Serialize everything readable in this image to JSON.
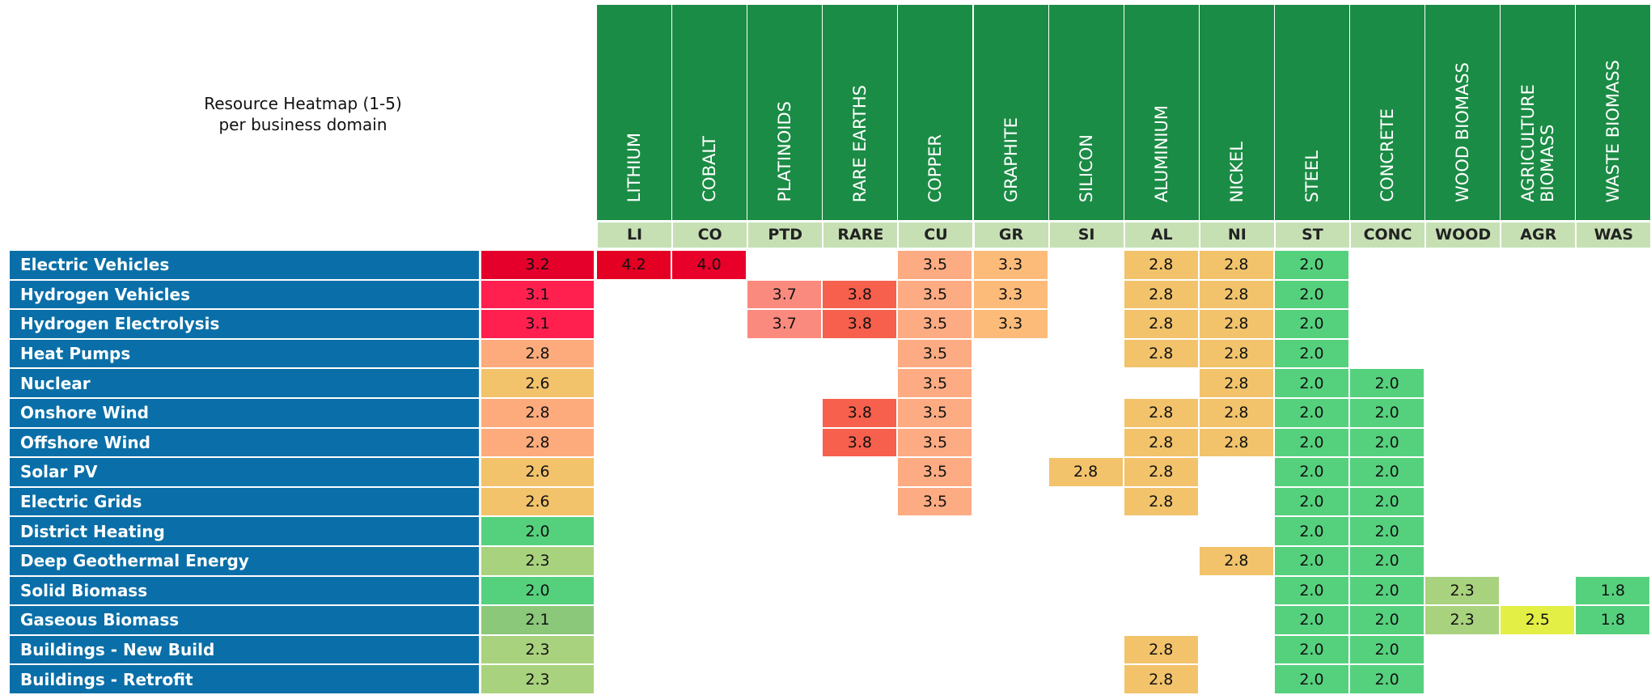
{
  "title": "Resource Heatmap (1-5)\nper business domain",
  "columns": [
    {
      "name": "LITHIUM",
      "abbr": "LI"
    },
    {
      "name": "COBALT",
      "abbr": "CO"
    },
    {
      "name": "PLATINOIDS",
      "abbr": "PTD"
    },
    {
      "name": "RARE EARTHS",
      "abbr": "RARE"
    },
    {
      "name": "COPPER",
      "abbr": "CU"
    },
    {
      "name": "GRAPHITE",
      "abbr": "GR"
    },
    {
      "name": "SILICON",
      "abbr": "SI"
    },
    {
      "name": "ALUMINIUM",
      "abbr": "AL"
    },
    {
      "name": "NICKEL",
      "abbr": "NI"
    },
    {
      "name": "STEEL",
      "abbr": "ST"
    },
    {
      "name": "CONCRETE",
      "abbr": "CONC"
    },
    {
      "name": "WOOD BIOMASS",
      "abbr": "WOOD"
    },
    {
      "name": "AGRICULTURE BIOMASS",
      "abbr": "AGR"
    },
    {
      "name": "WASTE BIOMASS",
      "abbr": "WAS"
    }
  ],
  "rows": [
    {
      "label": "Electric Vehicles",
      "average": {
        "value": "3.2",
        "color": "#e4002b"
      },
      "cells": [
        {
          "value": "4.2",
          "color": "#e30022"
        },
        {
          "value": "4.0",
          "color": "#e8002a"
        },
        null,
        null,
        {
          "value": "3.5",
          "color": "#fdab82"
        },
        {
          "value": "3.3",
          "color": "#fdbb7a"
        },
        null,
        {
          "value": "2.8",
          "color": "#f2c36b"
        },
        {
          "value": "2.8",
          "color": "#f2c36b"
        },
        {
          "value": "2.0",
          "color": "#55d17e"
        },
        null,
        null,
        null,
        null
      ]
    },
    {
      "label": "Hydrogen Vehicles",
      "average": {
        "value": "3.1",
        "color": "#ff2050"
      },
      "cells": [
        null,
        null,
        {
          "value": "3.7",
          "color": "#fb8a7e"
        },
        {
          "value": "3.8",
          "color": "#f6604c"
        },
        {
          "value": "3.5",
          "color": "#fdab82"
        },
        {
          "value": "3.3",
          "color": "#fdbb7a"
        },
        null,
        {
          "value": "2.8",
          "color": "#f2c36b"
        },
        {
          "value": "2.8",
          "color": "#f2c36b"
        },
        {
          "value": "2.0",
          "color": "#55d17e"
        },
        null,
        null,
        null,
        null
      ]
    },
    {
      "label": "Hydrogen Electrolysis",
      "average": {
        "value": "3.1",
        "color": "#ff2050"
      },
      "cells": [
        null,
        null,
        {
          "value": "3.7",
          "color": "#fb8a7e"
        },
        {
          "value": "3.8",
          "color": "#f6604c"
        },
        {
          "value": "3.5",
          "color": "#fdab82"
        },
        {
          "value": "3.3",
          "color": "#fdbb7a"
        },
        null,
        {
          "value": "2.8",
          "color": "#f2c36b"
        },
        {
          "value": "2.8",
          "color": "#f2c36b"
        },
        {
          "value": "2.0",
          "color": "#55d17e"
        },
        null,
        null,
        null,
        null
      ]
    },
    {
      "label": "Heat Pumps",
      "average": {
        "value": "2.8",
        "color": "#fdab7c"
      },
      "cells": [
        null,
        null,
        null,
        null,
        {
          "value": "3.5",
          "color": "#fdab82"
        },
        null,
        null,
        {
          "value": "2.8",
          "color": "#f2c36b"
        },
        {
          "value": "2.8",
          "color": "#f2c36b"
        },
        {
          "value": "2.0",
          "color": "#55d17e"
        },
        null,
        null,
        null,
        null
      ]
    },
    {
      "label": "Nuclear",
      "average": {
        "value": "2.6",
        "color": "#f2c36b"
      },
      "cells": [
        null,
        null,
        null,
        null,
        {
          "value": "3.5",
          "color": "#fdab82"
        },
        null,
        null,
        null,
        {
          "value": "2.8",
          "color": "#f2c36b"
        },
        {
          "value": "2.0",
          "color": "#55d17e"
        },
        {
          "value": "2.0",
          "color": "#55d17e"
        },
        null,
        null,
        null
      ]
    },
    {
      "label": "Onshore Wind",
      "average": {
        "value": "2.8",
        "color": "#fdab7c"
      },
      "cells": [
        null,
        null,
        null,
        {
          "value": "3.8",
          "color": "#f6604c"
        },
        {
          "value": "3.5",
          "color": "#fdab82"
        },
        null,
        null,
        {
          "value": "2.8",
          "color": "#f2c36b"
        },
        {
          "value": "2.8",
          "color": "#f2c36b"
        },
        {
          "value": "2.0",
          "color": "#55d17e"
        },
        {
          "value": "2.0",
          "color": "#55d17e"
        },
        null,
        null,
        null
      ]
    },
    {
      "label": "Offshore Wind",
      "average": {
        "value": "2.8",
        "color": "#fdab7c"
      },
      "cells": [
        null,
        null,
        null,
        {
          "value": "3.8",
          "color": "#f6604c"
        },
        {
          "value": "3.5",
          "color": "#fdab82"
        },
        null,
        null,
        {
          "value": "2.8",
          "color": "#f2c36b"
        },
        {
          "value": "2.8",
          "color": "#f2c36b"
        },
        {
          "value": "2.0",
          "color": "#55d17e"
        },
        {
          "value": "2.0",
          "color": "#55d17e"
        },
        null,
        null,
        null
      ]
    },
    {
      "label": "Solar PV",
      "average": {
        "value": "2.6",
        "color": "#f2c36b"
      },
      "cells": [
        null,
        null,
        null,
        null,
        {
          "value": "3.5",
          "color": "#fdab82"
        },
        null,
        {
          "value": "2.8",
          "color": "#f2c36b"
        },
        {
          "value": "2.8",
          "color": "#f2c36b"
        },
        null,
        {
          "value": "2.0",
          "color": "#55d17e"
        },
        {
          "value": "2.0",
          "color": "#55d17e"
        },
        null,
        null,
        null
      ]
    },
    {
      "label": "Electric Grids",
      "average": {
        "value": "2.6",
        "color": "#f2c36b"
      },
      "cells": [
        null,
        null,
        null,
        null,
        {
          "value": "3.5",
          "color": "#fdab82"
        },
        null,
        null,
        {
          "value": "2.8",
          "color": "#f2c36b"
        },
        null,
        {
          "value": "2.0",
          "color": "#55d17e"
        },
        {
          "value": "2.0",
          "color": "#55d17e"
        },
        null,
        null,
        null
      ]
    },
    {
      "label": "District Heating",
      "average": {
        "value": "2.0",
        "color": "#55d17e"
      },
      "cells": [
        null,
        null,
        null,
        null,
        null,
        null,
        null,
        null,
        null,
        {
          "value": "2.0",
          "color": "#55d17e"
        },
        {
          "value": "2.0",
          "color": "#55d17e"
        },
        null,
        null,
        null
      ]
    },
    {
      "label": "Deep Geothermal Energy",
      "average": {
        "value": "2.3",
        "color": "#a9d27e"
      },
      "cells": [
        null,
        null,
        null,
        null,
        null,
        null,
        null,
        null,
        {
          "value": "2.8",
          "color": "#f2c36b"
        },
        {
          "value": "2.0",
          "color": "#55d17e"
        },
        {
          "value": "2.0",
          "color": "#55d17e"
        },
        null,
        null,
        null
      ]
    },
    {
      "label": "Solid Biomass",
      "average": {
        "value": "2.0",
        "color": "#55d17e"
      },
      "cells": [
        null,
        null,
        null,
        null,
        null,
        null,
        null,
        null,
        null,
        {
          "value": "2.0",
          "color": "#55d17e"
        },
        {
          "value": "2.0",
          "color": "#55d17e"
        },
        {
          "value": "2.3",
          "color": "#a9d27e"
        },
        null,
        {
          "value": "1.8",
          "color": "#55d17e"
        }
      ]
    },
    {
      "label": "Gaseous Biomass",
      "average": {
        "value": "2.1",
        "color": "#8bc87a"
      },
      "cells": [
        null,
        null,
        null,
        null,
        null,
        null,
        null,
        null,
        null,
        {
          "value": "2.0",
          "color": "#55d17e"
        },
        {
          "value": "2.0",
          "color": "#55d17e"
        },
        {
          "value": "2.3",
          "color": "#a9d27e"
        },
        {
          "value": "2.5",
          "color": "#e3ef45"
        },
        {
          "value": "1.8",
          "color": "#55d17e"
        }
      ]
    },
    {
      "label": "Buildings - New Build",
      "average": {
        "value": "2.3",
        "color": "#a9d27e"
      },
      "cells": [
        null,
        null,
        null,
        null,
        null,
        null,
        null,
        {
          "value": "2.8",
          "color": "#f2c36b"
        },
        null,
        {
          "value": "2.0",
          "color": "#55d17e"
        },
        {
          "value": "2.0",
          "color": "#55d17e"
        },
        null,
        null,
        null
      ]
    },
    {
      "label": "Buildings - Retrofit",
      "average": {
        "value": "2.3",
        "color": "#a9d27e"
      },
      "cells": [
        null,
        null,
        null,
        null,
        null,
        null,
        null,
        {
          "value": "2.8",
          "color": "#f2c36b"
        },
        null,
        {
          "value": "2.0",
          "color": "#55d17e"
        },
        {
          "value": "2.0",
          "color": "#55d17e"
        },
        null,
        null,
        null
      ]
    }
  ]
}
